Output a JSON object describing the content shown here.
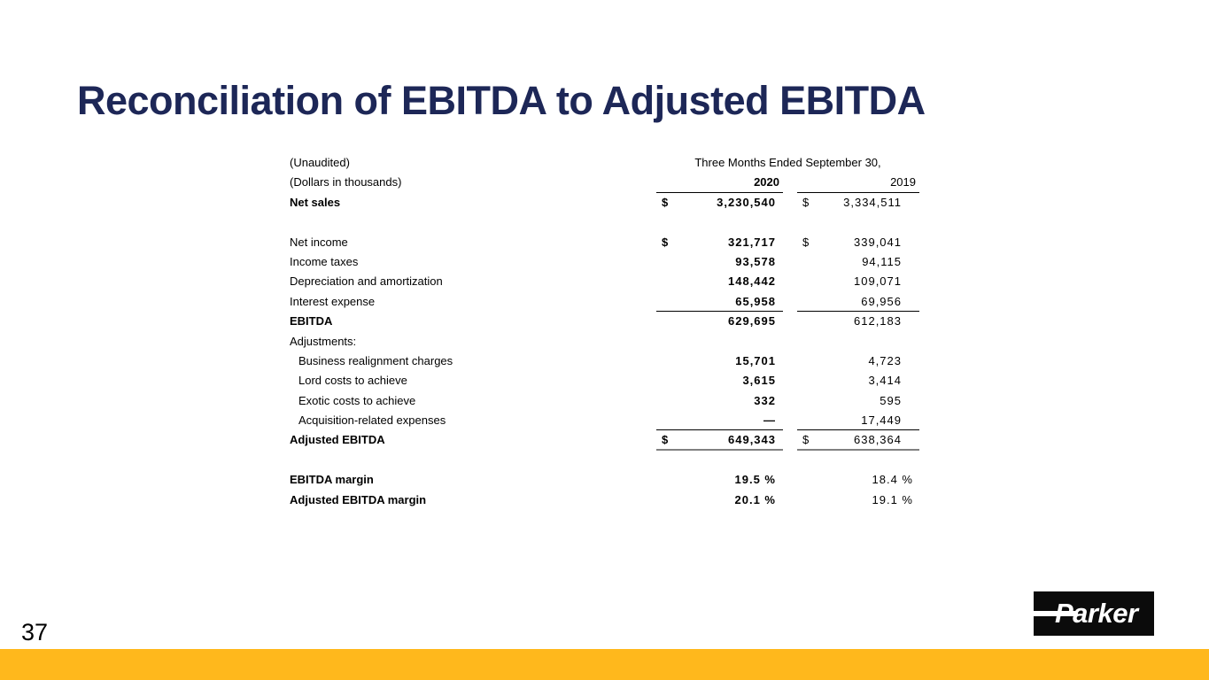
{
  "slide": {
    "title": "Reconciliation of EBITDA to Adjusted EBITDA",
    "page_number": "37",
    "title_color": "#1d2757",
    "accent_color": "#FFB81C",
    "logo": {
      "text": "Parker"
    }
  },
  "table": {
    "unaudited_label": "(Unaudited)",
    "dollars_label": "(Dollars in thousands)",
    "period_header": "Three Months Ended September 30,",
    "years": {
      "y2020": "2020",
      "y2019": "2019"
    },
    "rows": [
      {
        "label": "Net sales",
        "bold_label": true,
        "indent": false,
        "dollar": true,
        "v2020": "3,230,540",
        "v2019": "3,334,511",
        "rule": "none",
        "spacer_before": false
      },
      {
        "label": "Net income",
        "bold_label": false,
        "indent": false,
        "dollar": true,
        "v2020": "321,717",
        "v2019": "339,041",
        "rule": "none",
        "spacer_before": true
      },
      {
        "label": "Income taxes",
        "bold_label": false,
        "indent": false,
        "dollar": false,
        "v2020": "93,578",
        "v2019": "94,115",
        "rule": "none",
        "spacer_before": false
      },
      {
        "label": "Depreciation and amortization",
        "bold_label": false,
        "indent": false,
        "dollar": false,
        "v2020": "148,442",
        "v2019": "109,071",
        "rule": "none",
        "spacer_before": false
      },
      {
        "label": "Interest expense",
        "bold_label": false,
        "indent": false,
        "dollar": false,
        "v2020": "65,958",
        "v2019": "69,956",
        "rule": "black",
        "spacer_before": false
      },
      {
        "label": "EBITDA",
        "bold_label": true,
        "indent": false,
        "dollar": false,
        "v2020": "629,695",
        "v2019": "612,183",
        "rule": "none",
        "spacer_before": false
      },
      {
        "label": "Adjustments:",
        "bold_label": false,
        "indent": false,
        "dollar": false,
        "v2020": "",
        "v2019": "",
        "rule": "none",
        "spacer_before": false
      },
      {
        "label": "Business realignment charges",
        "bold_label": false,
        "indent": true,
        "dollar": false,
        "v2020": "15,701",
        "v2019": "4,723",
        "rule": "none",
        "spacer_before": false
      },
      {
        "label": "Lord costs to achieve",
        "bold_label": false,
        "indent": true,
        "dollar": false,
        "v2020": "3,615",
        "v2019": "3,414",
        "rule": "none",
        "spacer_before": false
      },
      {
        "label": "Exotic costs to achieve",
        "bold_label": false,
        "indent": true,
        "dollar": false,
        "v2020": "332",
        "v2019": "595",
        "rule": "none",
        "spacer_before": false
      },
      {
        "label": "Acquisition-related expenses",
        "bold_label": false,
        "indent": true,
        "dollar": false,
        "v2020": "—",
        "v2019": "17,449",
        "rule": "black",
        "spacer_before": false
      },
      {
        "label": "Adjusted EBITDA",
        "bold_label": true,
        "indent": false,
        "dollar": true,
        "v2020": "649,343",
        "v2019": "638,364",
        "rule": "gray",
        "spacer_before": false
      },
      {
        "label": "EBITDA margin",
        "bold_label": true,
        "indent": false,
        "dollar": false,
        "v2020": "19.5 %",
        "v2019": "18.4 %",
        "rule": "none",
        "spacer_before": true
      },
      {
        "label": "Adjusted EBITDA margin",
        "bold_label": true,
        "indent": false,
        "dollar": false,
        "v2020": "20.1 %",
        "v2019": "19.1 %",
        "rule": "none",
        "spacer_before": false
      }
    ]
  }
}
